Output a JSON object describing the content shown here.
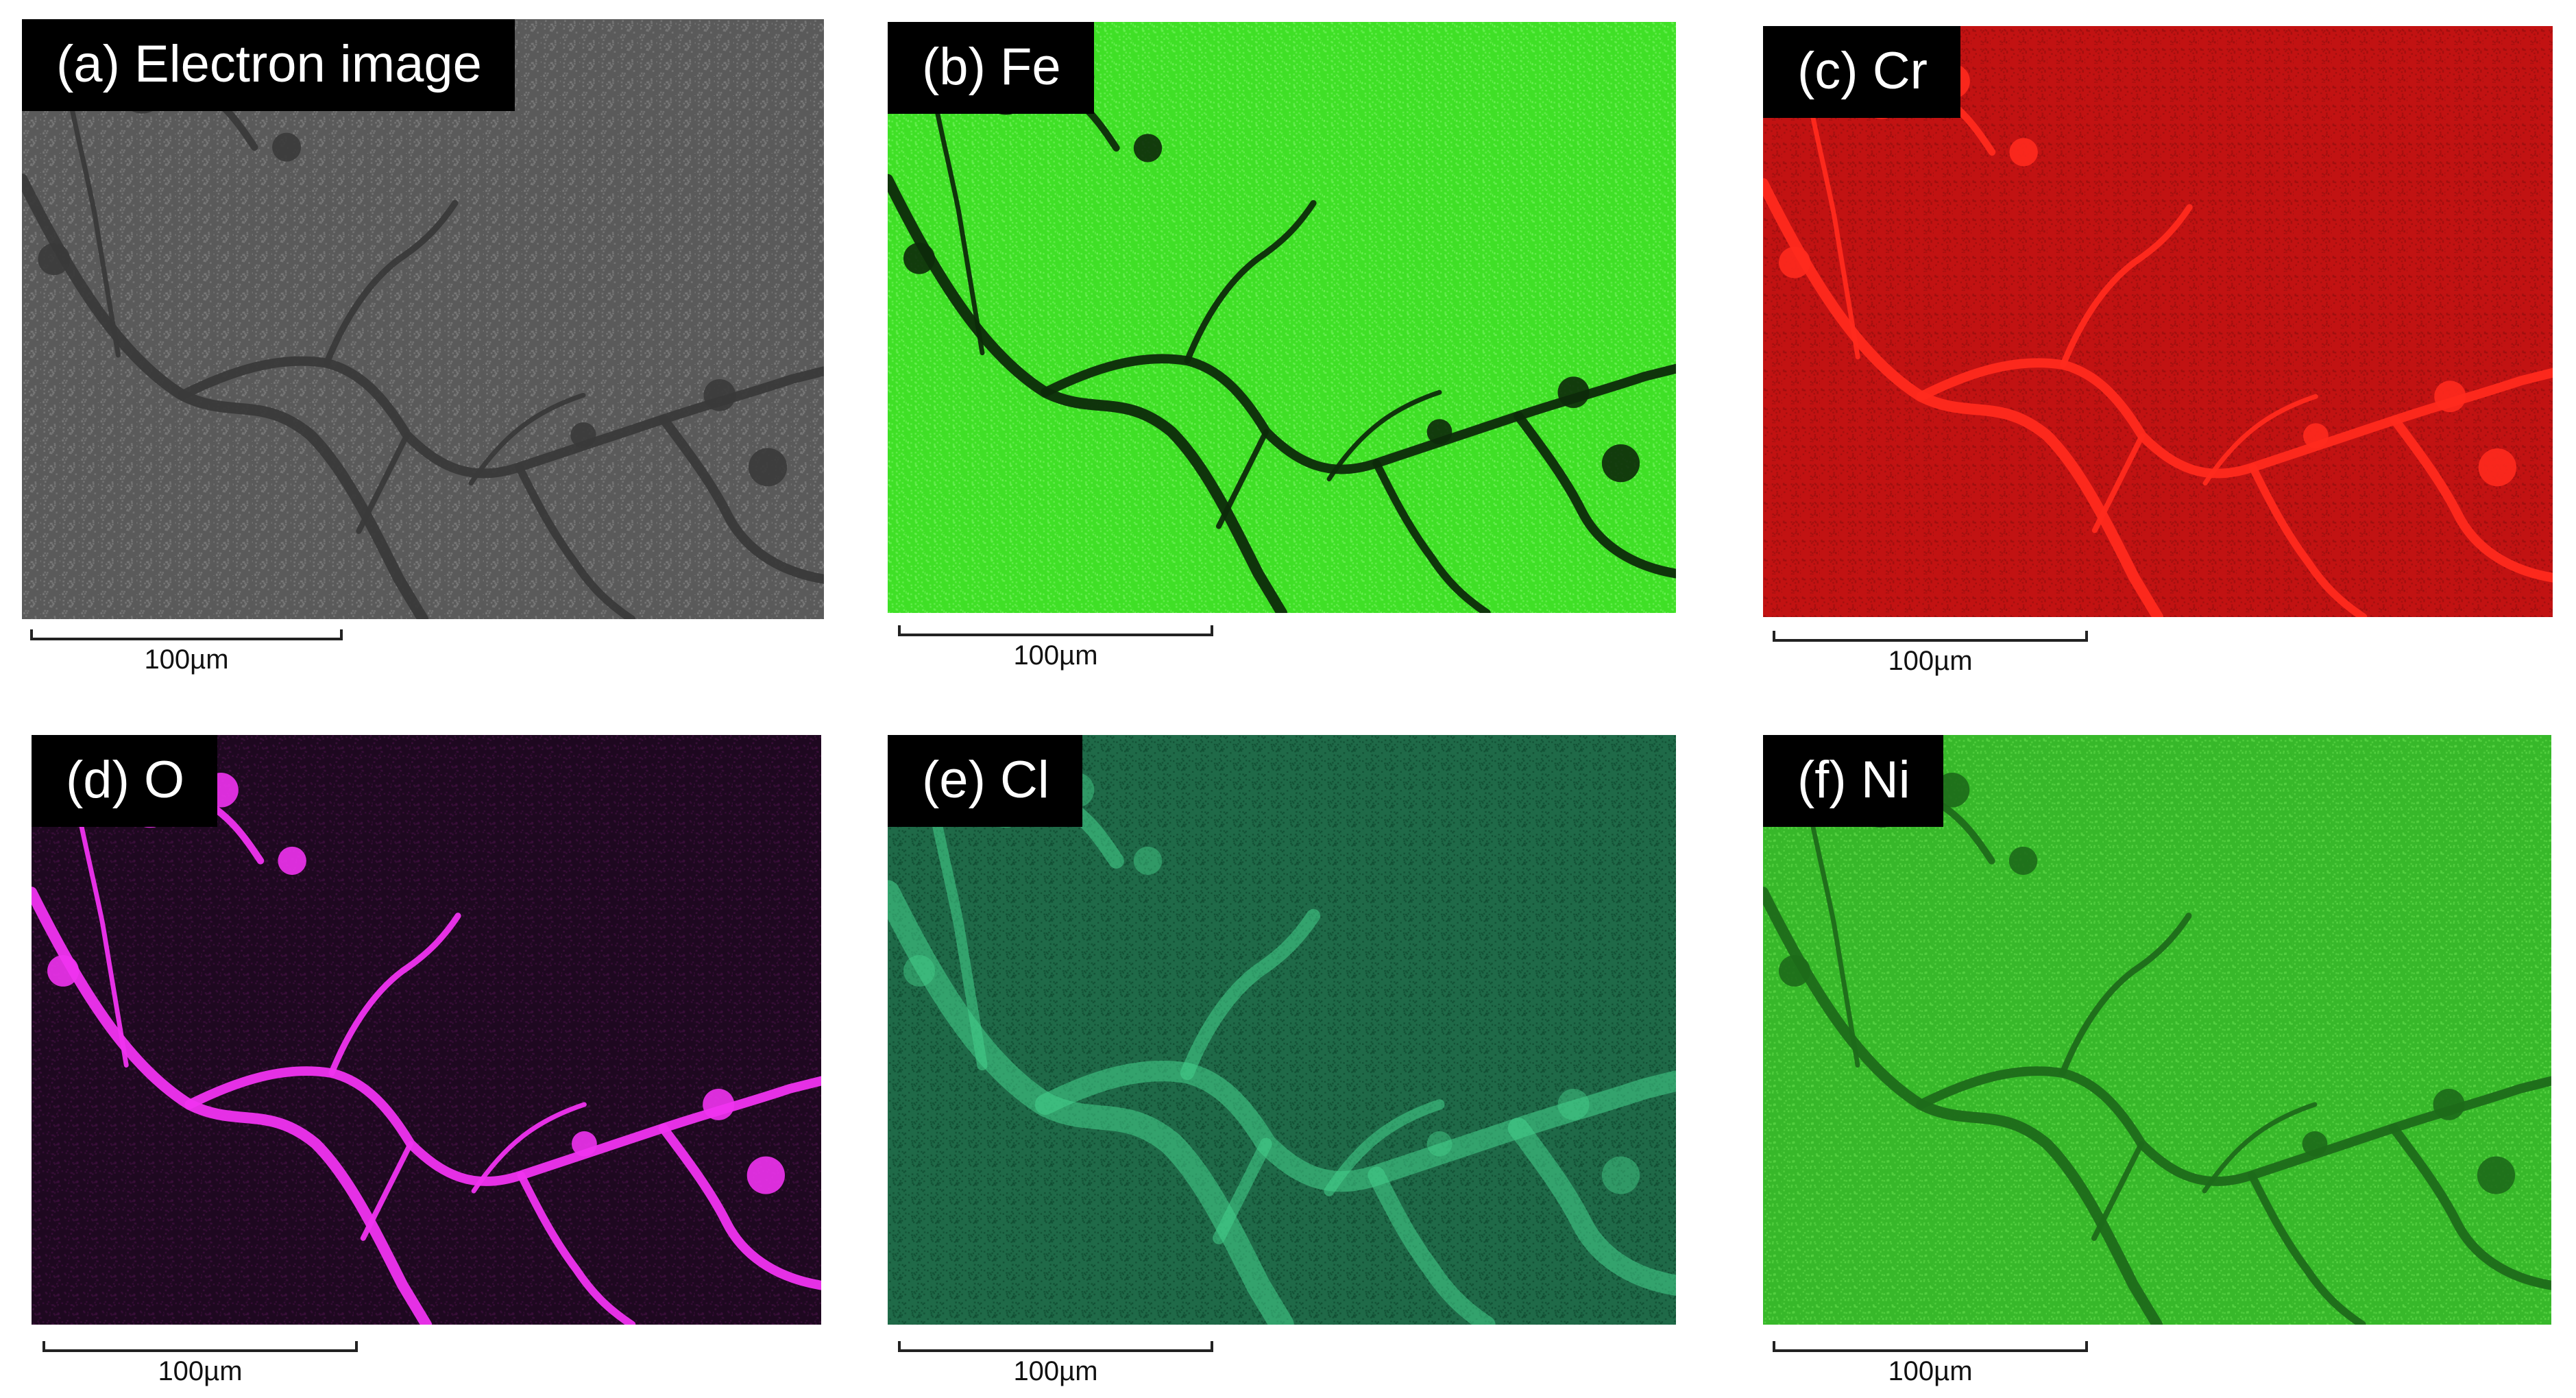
{
  "panels": [
    {
      "label": "(a) Electron image",
      "scale": "100µm",
      "bg": "#5a5a5a",
      "feature": "#3a3a3a",
      "noise": "#7a7a7a"
    },
    {
      "label": "(b) Fe",
      "scale": "100µm",
      "bg": "#3fe026",
      "feature": "#0d2a0a",
      "noise": "#6af055"
    },
    {
      "label": "(c) Cr",
      "scale": "100µm",
      "bg": "#c21212",
      "feature": "#ff2a1e",
      "noise": "#9c0d0d"
    },
    {
      "label": "(d) O",
      "scale": "100µm",
      "bg": "#1e0820",
      "feature": "#f033f0",
      "noise": "#3a0f3a"
    },
    {
      "label": "(e) Cl",
      "scale": "100µm",
      "bg": "#1f6a48",
      "feature": "#44d28c",
      "noise": "#0f4a30"
    },
    {
      "label": "(f) Ni",
      "scale": "100µm",
      "bg": "#37b82a",
      "feature": "#1d6a1a",
      "noise": "#56d243"
    }
  ]
}
